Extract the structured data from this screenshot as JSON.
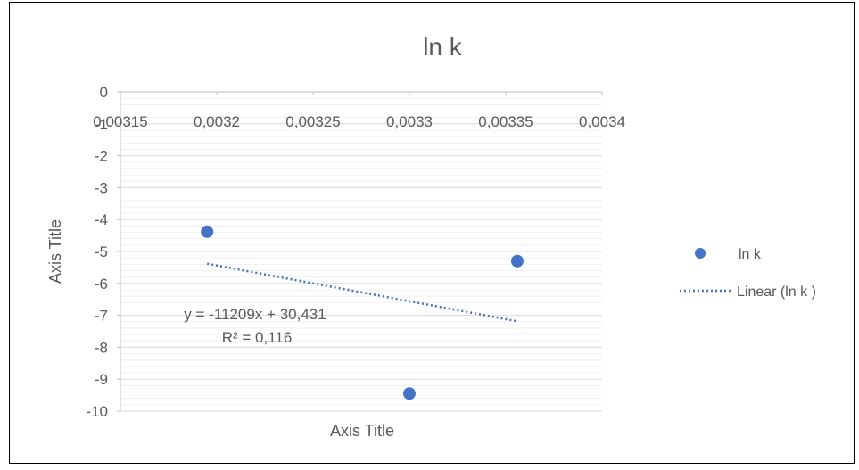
{
  "chart_data": {
    "type": "scatter",
    "title": "ln k",
    "xlabel": "Axis Title",
    "ylabel": "Axis Title",
    "xlim": [
      0.00315,
      0.0034
    ],
    "ylim": [
      -10,
      0
    ],
    "x_ticks": [
      "0,00315",
      "0,0032",
      "0,00325",
      "0,0033",
      "0,00335",
      "0,0034"
    ],
    "y_ticks": [
      "0",
      "-1",
      "-2",
      "-3",
      "-4",
      "-5",
      "-6",
      "-7",
      "-8",
      "-9",
      "-10"
    ],
    "grid": true,
    "legend_position": "right",
    "series": [
      {
        "name": "ln k",
        "type": "scatter",
        "color": "#4472C4",
        "points": [
          {
            "x": 0.003195,
            "y": -4.38
          },
          {
            "x": 0.0033,
            "y": -9.45
          },
          {
            "x": 0.003356,
            "y": -5.3
          }
        ]
      },
      {
        "name": "Linear (ln k )",
        "type": "trendline",
        "color": "#4472C4",
        "slope": -11209,
        "intercept": 30.431,
        "x_range": [
          0.003195,
          0.003356
        ]
      }
    ],
    "annotations": [
      "y = -11209x + 30,431",
      "R² = 0,116"
    ]
  }
}
